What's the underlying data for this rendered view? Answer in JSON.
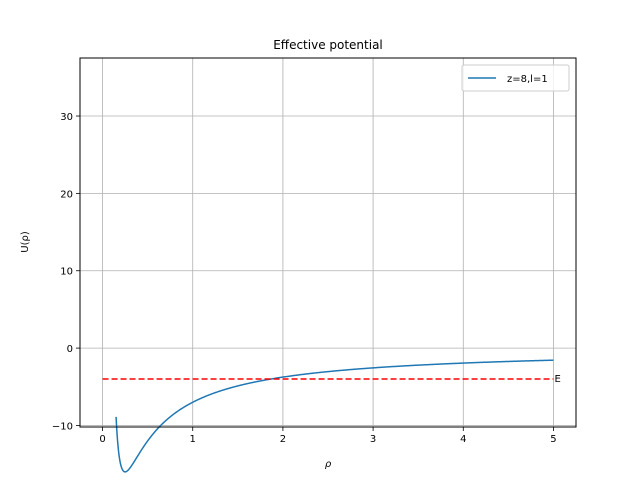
{
  "chart_data": {
    "type": "line",
    "title": "Effective potential",
    "xlabel": "ρ",
    "ylabel": "U(ρ)",
    "xlim": [
      -0.25,
      5.25
    ],
    "ylim": [
      -10.2,
      37.5
    ],
    "xticks": [
      0,
      1,
      2,
      3,
      4,
      5
    ],
    "yticks": [
      -10,
      0,
      10,
      20,
      30
    ],
    "xtick_labels": [
      "0",
      "1",
      "2",
      "3",
      "4",
      "5"
    ],
    "ytick_labels": [
      "−10",
      "0",
      "10",
      "20",
      "30"
    ],
    "grid": true,
    "legend": {
      "placement": "top-right",
      "entries": [
        "z=8,l=1"
      ]
    },
    "series": [
      {
        "name": "z=8,l=1",
        "color": "#1f77b4",
        "style": "solid",
        "formula": "U(rho) = 1/rho^2 - 8/rho",
        "x_range": [
          0.15,
          5.0
        ]
      },
      {
        "color": "#ff0000",
        "style": "dashed",
        "x": [
          0,
          5
        ],
        "y": [
          -4,
          -4
        ]
      }
    ],
    "annotations": [
      {
        "text": "E",
        "x": 5,
        "y": -4
      }
    ]
  }
}
